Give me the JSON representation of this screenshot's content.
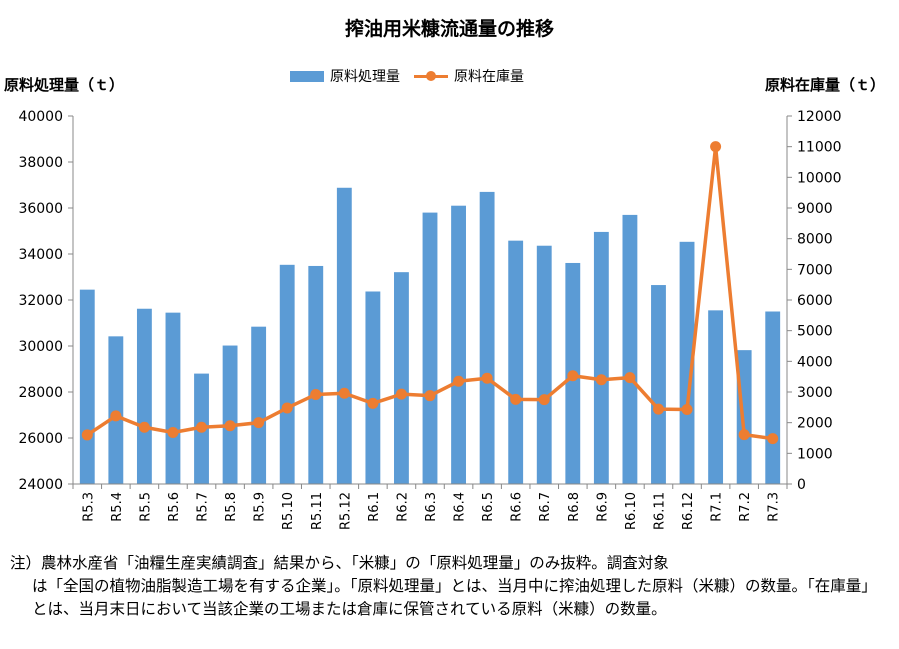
{
  "chart_data": {
    "type": "bar",
    "title": "搾油用米糠流通量の推移",
    "ylabel": "原料処理量（ｔ）",
    "y2label": "原料在庫量（ｔ）",
    "categories": [
      "R5.3",
      "R5.4",
      "R5.5",
      "R5.6",
      "R5.7",
      "R5.8",
      "R5.9",
      "R5.10",
      "R5.11",
      "R5.12",
      "R6.1",
      "R6.2",
      "R6.3",
      "R6.4",
      "R6.5",
      "R6.6",
      "R6.7",
      "R6.8",
      "R6.9",
      "R6.10",
      "R6.11",
      "R6.12",
      "R7.1",
      "R7.2",
      "R7.3"
    ],
    "series": [
      {
        "name": "原料処理量",
        "type": "bar",
        "axis": "left",
        "color": "#5B9BD5",
        "values": [
          32450,
          30420,
          31620,
          31450,
          28800,
          30020,
          30840,
          33530,
          33480,
          36880,
          32370,
          33210,
          35800,
          36100,
          36700,
          34580,
          34360,
          33610,
          34960,
          35700,
          32650,
          34530,
          31550,
          29820,
          31500
        ]
      },
      {
        "name": "原料在庫量",
        "type": "line",
        "axis": "right",
        "color": "#ED7D31",
        "values": [
          1600,
          2220,
          1850,
          1680,
          1850,
          1900,
          2000,
          2480,
          2920,
          2960,
          2630,
          2930,
          2880,
          3350,
          3450,
          2760,
          2750,
          3530,
          3400,
          3470,
          2440,
          2430,
          11000,
          1610,
          1480
        ]
      }
    ],
    "ylim": [
      24000,
      40000
    ],
    "yticks": [
      24000,
      26000,
      28000,
      30000,
      32000,
      34000,
      36000,
      38000,
      40000
    ],
    "y2lim": [
      0,
      12000
    ],
    "y2ticks": [
      0,
      1000,
      2000,
      3000,
      4000,
      5000,
      6000,
      7000,
      8000,
      9000,
      10000,
      11000,
      12000
    ],
    "legend": "top-center",
    "grid": false
  },
  "note": {
    "first": "注）農林水産省「油糧生産実績調査」結果から、「米糠」の「原料処理量」のみ抜粋。調査対象",
    "rest": "は「全国の植物油脂製造工場を有する企業」。「原料処理量」とは、当月中に搾油処理した原料（米糠）の数量。「在庫量」とは、当月末日において当該企業の工場または倉庫に保管されている原料（米糠）の数量。"
  }
}
